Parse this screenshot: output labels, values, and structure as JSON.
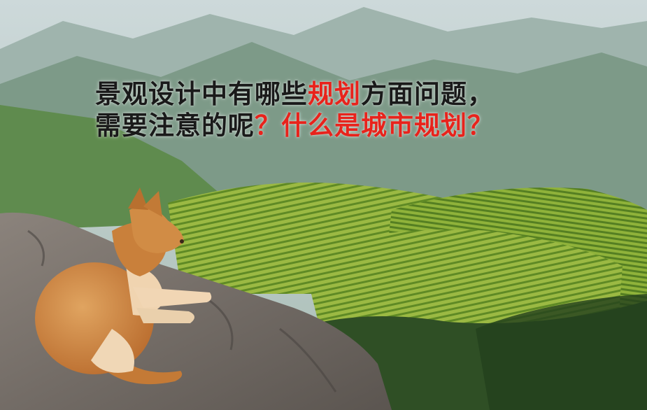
{
  "title": {
    "line1": {
      "part1": "景观设计中有哪些",
      "accent": "规划",
      "part2": "方面问题，"
    },
    "line2": {
      "part1": "需要注意的呢",
      "accent": "？什么是城市规划？"
    }
  },
  "colors": {
    "title_text": "#1a1a1a",
    "title_accent": "#e8231c"
  }
}
